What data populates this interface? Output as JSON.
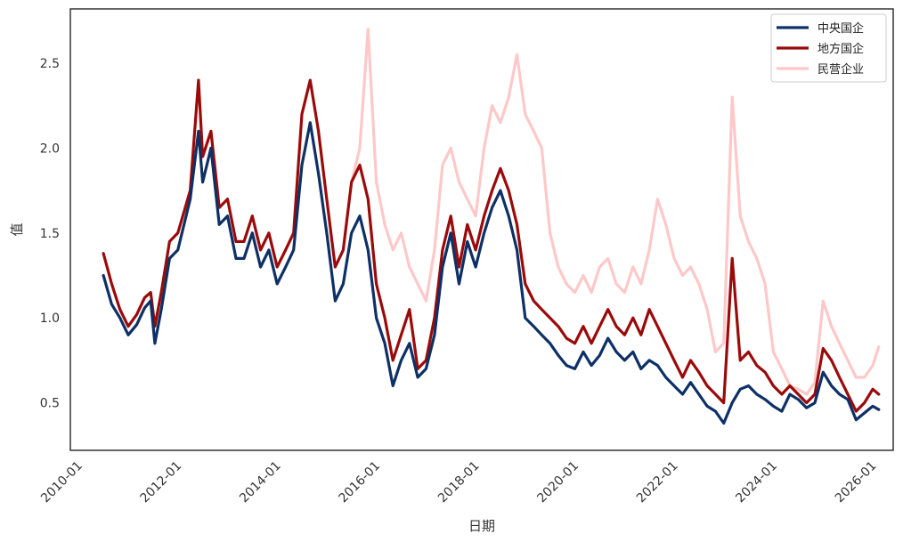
{
  "chart_data": {
    "type": "line",
    "title": "",
    "xlabel": "日期",
    "ylabel": "值",
    "xlim": [
      "2009-10-01",
      "2026-05-01"
    ],
    "ylim": [
      0.22,
      2.82
    ],
    "x_ticks": [
      "2010-01",
      "2012-01",
      "2014-01",
      "2016-01",
      "2018-01",
      "2020-01",
      "2022-01",
      "2024-01",
      "2026-01"
    ],
    "y_ticks": [
      "0.5",
      "1.0",
      "1.5",
      "2.0",
      "2.5"
    ],
    "grid": false,
    "legend_position": "top-right",
    "series": [
      {
        "name": "中央国企",
        "color": "#0d3066",
        "points": [
          [
            "2010-06-01",
            1.25
          ],
          [
            "2010-08-01",
            1.08
          ],
          [
            "2010-10-01",
            1.0
          ],
          [
            "2010-12-01",
            0.9
          ],
          [
            "2011-02-01",
            0.96
          ],
          [
            "2011-04-01",
            1.06
          ],
          [
            "2011-05-15",
            1.1
          ],
          [
            "2011-06-15",
            0.85
          ],
          [
            "2011-08-01",
            1.05
          ],
          [
            "2011-10-01",
            1.35
          ],
          [
            "2011-12-01",
            1.4
          ],
          [
            "2012-03-01",
            1.7
          ],
          [
            "2012-05-01",
            2.1
          ],
          [
            "2012-06-01",
            1.8
          ],
          [
            "2012-08-01",
            2.0
          ],
          [
            "2012-10-01",
            1.55
          ],
          [
            "2012-12-01",
            1.6
          ],
          [
            "2013-02-01",
            1.35
          ],
          [
            "2013-04-01",
            1.35
          ],
          [
            "2013-06-01",
            1.5
          ],
          [
            "2013-08-01",
            1.3
          ],
          [
            "2013-10-01",
            1.4
          ],
          [
            "2013-12-01",
            1.2
          ],
          [
            "2014-02-01",
            1.3
          ],
          [
            "2014-04-01",
            1.4
          ],
          [
            "2014-06-01",
            1.9
          ],
          [
            "2014-08-01",
            2.15
          ],
          [
            "2014-10-01",
            1.85
          ],
          [
            "2014-12-01",
            1.5
          ],
          [
            "2015-02-01",
            1.1
          ],
          [
            "2015-04-01",
            1.2
          ],
          [
            "2015-06-01",
            1.5
          ],
          [
            "2015-08-01",
            1.6
          ],
          [
            "2015-10-01",
            1.4
          ],
          [
            "2015-12-01",
            1.0
          ],
          [
            "2016-02-01",
            0.85
          ],
          [
            "2016-04-01",
            0.6
          ],
          [
            "2016-06-01",
            0.75
          ],
          [
            "2016-08-01",
            0.85
          ],
          [
            "2016-10-01",
            0.65
          ],
          [
            "2016-12-01",
            0.7
          ],
          [
            "2017-02-01",
            0.9
          ],
          [
            "2017-04-01",
            1.3
          ],
          [
            "2017-06-01",
            1.5
          ],
          [
            "2017-08-01",
            1.2
          ],
          [
            "2017-10-01",
            1.45
          ],
          [
            "2017-12-01",
            1.3
          ],
          [
            "2018-02-01",
            1.5
          ],
          [
            "2018-04-01",
            1.65
          ],
          [
            "2018-06-01",
            1.75
          ],
          [
            "2018-08-01",
            1.6
          ],
          [
            "2018-10-01",
            1.4
          ],
          [
            "2018-12-01",
            1.0
          ],
          [
            "2019-02-01",
            0.95
          ],
          [
            "2019-04-01",
            0.9
          ],
          [
            "2019-06-01",
            0.85
          ],
          [
            "2019-08-01",
            0.78
          ],
          [
            "2019-10-01",
            0.72
          ],
          [
            "2019-12-01",
            0.7
          ],
          [
            "2020-02-01",
            0.8
          ],
          [
            "2020-04-01",
            0.72
          ],
          [
            "2020-06-01",
            0.78
          ],
          [
            "2020-08-01",
            0.88
          ],
          [
            "2020-10-01",
            0.8
          ],
          [
            "2020-12-01",
            0.75
          ],
          [
            "2021-02-01",
            0.8
          ],
          [
            "2021-04-01",
            0.7
          ],
          [
            "2021-06-01",
            0.75
          ],
          [
            "2021-08-01",
            0.72
          ],
          [
            "2021-10-01",
            0.65
          ],
          [
            "2021-12-01",
            0.6
          ],
          [
            "2022-02-01",
            0.55
          ],
          [
            "2022-04-01",
            0.62
          ],
          [
            "2022-06-01",
            0.55
          ],
          [
            "2022-08-01",
            0.48
          ],
          [
            "2022-10-01",
            0.45
          ],
          [
            "2022-12-01",
            0.38
          ],
          [
            "2023-02-01",
            0.5
          ],
          [
            "2023-04-01",
            0.58
          ],
          [
            "2023-06-01",
            0.6
          ],
          [
            "2023-08-01",
            0.55
          ],
          [
            "2023-10-01",
            0.52
          ],
          [
            "2023-12-01",
            0.48
          ],
          [
            "2024-02-01",
            0.45
          ],
          [
            "2024-04-01",
            0.55
          ],
          [
            "2024-06-01",
            0.52
          ],
          [
            "2024-08-01",
            0.47
          ],
          [
            "2024-10-01",
            0.5
          ],
          [
            "2024-12-01",
            0.68
          ],
          [
            "2025-02-01",
            0.6
          ],
          [
            "2025-04-01",
            0.55
          ],
          [
            "2025-06-01",
            0.52
          ],
          [
            "2025-08-01",
            0.4
          ],
          [
            "2025-10-01",
            0.44
          ],
          [
            "2025-12-01",
            0.48
          ],
          [
            "2026-01-15",
            0.46
          ]
        ]
      },
      {
        "name": "地方国企",
        "color": "#9b0a0a",
        "points": [
          [
            "2010-06-01",
            1.38
          ],
          [
            "2010-08-01",
            1.2
          ],
          [
            "2010-10-01",
            1.05
          ],
          [
            "2010-12-01",
            0.95
          ],
          [
            "2011-02-01",
            1.02
          ],
          [
            "2011-04-01",
            1.12
          ],
          [
            "2011-05-15",
            1.15
          ],
          [
            "2011-06-15",
            0.95
          ],
          [
            "2011-08-01",
            1.15
          ],
          [
            "2011-10-01",
            1.45
          ],
          [
            "2011-12-01",
            1.5
          ],
          [
            "2012-03-01",
            1.75
          ],
          [
            "2012-05-01",
            2.4
          ],
          [
            "2012-06-01",
            1.95
          ],
          [
            "2012-08-01",
            2.1
          ],
          [
            "2012-10-01",
            1.65
          ],
          [
            "2012-12-01",
            1.7
          ],
          [
            "2013-02-01",
            1.45
          ],
          [
            "2013-04-01",
            1.45
          ],
          [
            "2013-06-01",
            1.6
          ],
          [
            "2013-08-01",
            1.4
          ],
          [
            "2013-10-01",
            1.5
          ],
          [
            "2013-12-01",
            1.3
          ],
          [
            "2014-02-01",
            1.4
          ],
          [
            "2014-04-01",
            1.5
          ],
          [
            "2014-06-01",
            2.2
          ],
          [
            "2014-08-01",
            2.4
          ],
          [
            "2014-10-01",
            2.1
          ],
          [
            "2014-12-01",
            1.7
          ],
          [
            "2015-02-01",
            1.3
          ],
          [
            "2015-04-01",
            1.4
          ],
          [
            "2015-06-01",
            1.8
          ],
          [
            "2015-08-01",
            1.9
          ],
          [
            "2015-10-01",
            1.7
          ],
          [
            "2015-12-01",
            1.2
          ],
          [
            "2016-02-01",
            1.0
          ],
          [
            "2016-04-01",
            0.75
          ],
          [
            "2016-06-01",
            0.9
          ],
          [
            "2016-08-01",
            1.05
          ],
          [
            "2016-10-01",
            0.7
          ],
          [
            "2016-12-01",
            0.75
          ],
          [
            "2017-02-01",
            1.0
          ],
          [
            "2017-04-01",
            1.4
          ],
          [
            "2017-06-01",
            1.6
          ],
          [
            "2017-08-01",
            1.3
          ],
          [
            "2017-10-01",
            1.55
          ],
          [
            "2017-12-01",
            1.4
          ],
          [
            "2018-02-01",
            1.6
          ],
          [
            "2018-04-01",
            1.75
          ],
          [
            "2018-06-01",
            1.88
          ],
          [
            "2018-08-01",
            1.75
          ],
          [
            "2018-10-01",
            1.55
          ],
          [
            "2018-12-01",
            1.2
          ],
          [
            "2019-02-01",
            1.1
          ],
          [
            "2019-04-01",
            1.05
          ],
          [
            "2019-06-01",
            1.0
          ],
          [
            "2019-08-01",
            0.95
          ],
          [
            "2019-10-01",
            0.88
          ],
          [
            "2019-12-01",
            0.85
          ],
          [
            "2020-02-01",
            0.95
          ],
          [
            "2020-04-01",
            0.85
          ],
          [
            "2020-06-01",
            0.95
          ],
          [
            "2020-08-01",
            1.05
          ],
          [
            "2020-10-01",
            0.95
          ],
          [
            "2020-12-01",
            0.9
          ],
          [
            "2021-02-01",
            1.0
          ],
          [
            "2021-04-01",
            0.9
          ],
          [
            "2021-06-01",
            1.05
          ],
          [
            "2021-08-01",
            0.95
          ],
          [
            "2021-10-01",
            0.85
          ],
          [
            "2021-12-01",
            0.75
          ],
          [
            "2022-02-01",
            0.65
          ],
          [
            "2022-04-01",
            0.75
          ],
          [
            "2022-06-01",
            0.68
          ],
          [
            "2022-08-01",
            0.6
          ],
          [
            "2022-10-01",
            0.55
          ],
          [
            "2022-12-01",
            0.5
          ],
          [
            "2023-02-01",
            1.35
          ],
          [
            "2023-04-01",
            0.75
          ],
          [
            "2023-06-01",
            0.8
          ],
          [
            "2023-08-01",
            0.72
          ],
          [
            "2023-10-01",
            0.68
          ],
          [
            "2023-12-01",
            0.6
          ],
          [
            "2024-02-01",
            0.55
          ],
          [
            "2024-04-01",
            0.6
          ],
          [
            "2024-06-01",
            0.55
          ],
          [
            "2024-08-01",
            0.5
          ],
          [
            "2024-10-01",
            0.55
          ],
          [
            "2024-12-01",
            0.82
          ],
          [
            "2025-02-01",
            0.75
          ],
          [
            "2025-04-01",
            0.65
          ],
          [
            "2025-06-01",
            0.55
          ],
          [
            "2025-08-01",
            0.45
          ],
          [
            "2025-10-01",
            0.5
          ],
          [
            "2025-12-01",
            0.58
          ],
          [
            "2026-01-15",
            0.55
          ]
        ]
      },
      {
        "name": "民营企业",
        "color": "#ffc8c8",
        "points": [
          [
            "2015-06-01",
            1.8
          ],
          [
            "2015-08-01",
            2.0
          ],
          [
            "2015-10-01",
            2.7
          ],
          [
            "2015-12-01",
            1.8
          ],
          [
            "2016-02-01",
            1.55
          ],
          [
            "2016-04-01",
            1.4
          ],
          [
            "2016-06-01",
            1.5
          ],
          [
            "2016-08-01",
            1.3
          ],
          [
            "2016-10-01",
            1.2
          ],
          [
            "2016-12-01",
            1.1
          ],
          [
            "2017-02-01",
            1.4
          ],
          [
            "2017-04-01",
            1.9
          ],
          [
            "2017-06-01",
            2.0
          ],
          [
            "2017-08-01",
            1.8
          ],
          [
            "2017-10-01",
            1.7
          ],
          [
            "2017-12-01",
            1.6
          ],
          [
            "2018-02-01",
            2.0
          ],
          [
            "2018-04-01",
            2.25
          ],
          [
            "2018-06-01",
            2.15
          ],
          [
            "2018-08-01",
            2.3
          ],
          [
            "2018-10-01",
            2.55
          ],
          [
            "2018-12-01",
            2.2
          ],
          [
            "2019-02-01",
            2.1
          ],
          [
            "2019-04-01",
            2.0
          ],
          [
            "2019-06-01",
            1.5
          ],
          [
            "2019-08-01",
            1.3
          ],
          [
            "2019-10-01",
            1.2
          ],
          [
            "2019-12-01",
            1.15
          ],
          [
            "2020-02-01",
            1.25
          ],
          [
            "2020-04-01",
            1.15
          ],
          [
            "2020-06-01",
            1.3
          ],
          [
            "2020-08-01",
            1.35
          ],
          [
            "2020-10-01",
            1.2
          ],
          [
            "2020-12-01",
            1.15
          ],
          [
            "2021-02-01",
            1.3
          ],
          [
            "2021-04-01",
            1.2
          ],
          [
            "2021-06-01",
            1.4
          ],
          [
            "2021-08-01",
            1.7
          ],
          [
            "2021-10-01",
            1.55
          ],
          [
            "2021-12-01",
            1.35
          ],
          [
            "2022-02-01",
            1.25
          ],
          [
            "2022-04-01",
            1.3
          ],
          [
            "2022-06-01",
            1.2
          ],
          [
            "2022-08-01",
            1.05
          ],
          [
            "2022-10-01",
            0.8
          ],
          [
            "2022-12-01",
            0.85
          ],
          [
            "2023-02-01",
            2.3
          ],
          [
            "2023-04-01",
            1.6
          ],
          [
            "2023-06-01",
            1.45
          ],
          [
            "2023-08-01",
            1.35
          ],
          [
            "2023-10-01",
            1.2
          ],
          [
            "2023-12-01",
            0.8
          ],
          [
            "2024-02-01",
            0.7
          ],
          [
            "2024-04-01",
            0.6
          ],
          [
            "2024-06-01",
            0.58
          ],
          [
            "2024-08-01",
            0.55
          ],
          [
            "2024-10-01",
            0.62
          ],
          [
            "2024-12-01",
            1.1
          ],
          [
            "2025-02-01",
            0.95
          ],
          [
            "2025-04-01",
            0.85
          ],
          [
            "2025-06-01",
            0.75
          ],
          [
            "2025-08-01",
            0.65
          ],
          [
            "2025-10-01",
            0.65
          ],
          [
            "2025-12-01",
            0.72
          ],
          [
            "2026-01-15",
            0.83
          ]
        ]
      }
    ]
  }
}
